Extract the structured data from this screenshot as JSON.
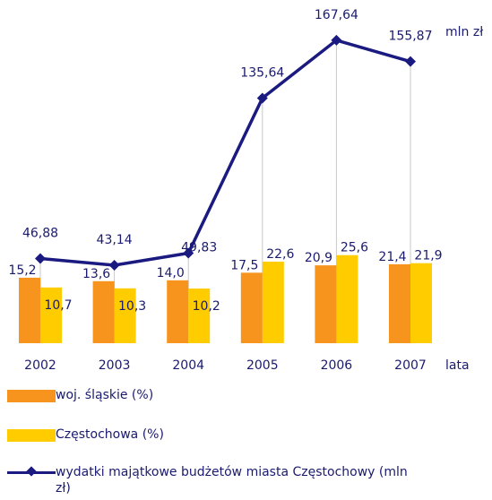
{
  "chart_data": {
    "type": "bar-line",
    "categories": [
      "2002",
      "2003",
      "2004",
      "2005",
      "2006",
      "2007"
    ],
    "x_label": "lata",
    "y2_unit": "mln zł",
    "series": [
      {
        "name": "woj. śląskie (%)",
        "type": "bar",
        "color": "#f7941d",
        "values": [
          15.2,
          13.6,
          14.0,
          17.5,
          20.9,
          21.4
        ],
        "value_labels": [
          "15,2",
          "13,6",
          "14,0",
          "17,5",
          "20,9",
          "21,4"
        ]
      },
      {
        "name": "Częstochowa (%)",
        "type": "bar",
        "color": "#ffcc00",
        "values": [
          10.7,
          10.3,
          10.2,
          22.6,
          25.6,
          21.9
        ],
        "value_labels": [
          "10,7",
          "10,3",
          "10,2",
          "22,6",
          "25,6",
          "21,9"
        ]
      },
      {
        "name": "wydatki majątkowe budżetów miasta Częstochowy (mln zł)",
        "type": "line",
        "axis": "y2",
        "color": "#1a1a80",
        "values": [
          46.88,
          43.14,
          49.83,
          135.64,
          167.64,
          155.87
        ],
        "value_labels": [
          "46,88",
          "43,14",
          "49,83",
          "135,64",
          "167,64",
          "155,87"
        ]
      }
    ],
    "ylim": [
      -15,
      135
    ],
    "y2lim": [
      0,
      180
    ]
  }
}
